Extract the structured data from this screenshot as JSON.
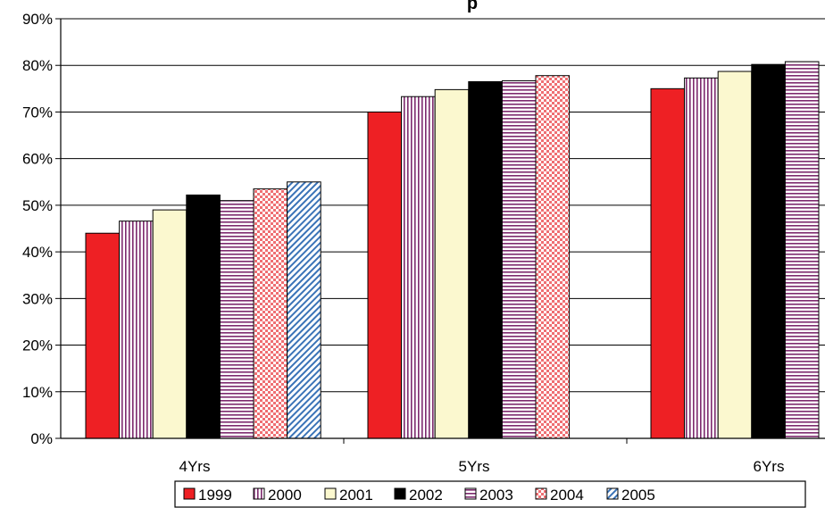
{
  "chart_data": {
    "type": "bar",
    "title": "",
    "title_visible_fragment": "p",
    "xlabel": "",
    "ylabel": "",
    "categories": [
      "4Yrs",
      "5Yrs",
      "6Yrs"
    ],
    "ylim": [
      0,
      0.9
    ],
    "yticks": [
      "0%",
      "10%",
      "20%",
      "30%",
      "40%",
      "50%",
      "60%",
      "70%",
      "80%",
      "90%"
    ],
    "grid": "horizontal",
    "legend_position": "bottom",
    "series": [
      {
        "name": "1999",
        "values": [
          0.44,
          0.7,
          0.75
        ],
        "color": "#ee2024",
        "pattern": "solid"
      },
      {
        "name": "2000",
        "values": [
          0.466,
          0.733,
          0.773
        ],
        "color": "#7d2a6e",
        "pattern": "vertical-lines"
      },
      {
        "name": "2001",
        "values": [
          0.49,
          0.748,
          0.787
        ],
        "color": "#fbf8cf",
        "pattern": "solid"
      },
      {
        "name": "2002",
        "values": [
          0.522,
          0.765,
          0.802
        ],
        "color": "#000000",
        "pattern": "solid"
      },
      {
        "name": "2003",
        "values": [
          0.51,
          0.767,
          0.808
        ],
        "color": "#7d2a6e",
        "pattern": "horizontal-lines"
      },
      {
        "name": "2004",
        "values": [
          0.535,
          0.778,
          null
        ],
        "color": "#ef6f73",
        "pattern": "checker"
      },
      {
        "name": "2005",
        "values": [
          0.55,
          null,
          null
        ],
        "color": "#3a73b7",
        "pattern": "diagonal"
      }
    ]
  }
}
